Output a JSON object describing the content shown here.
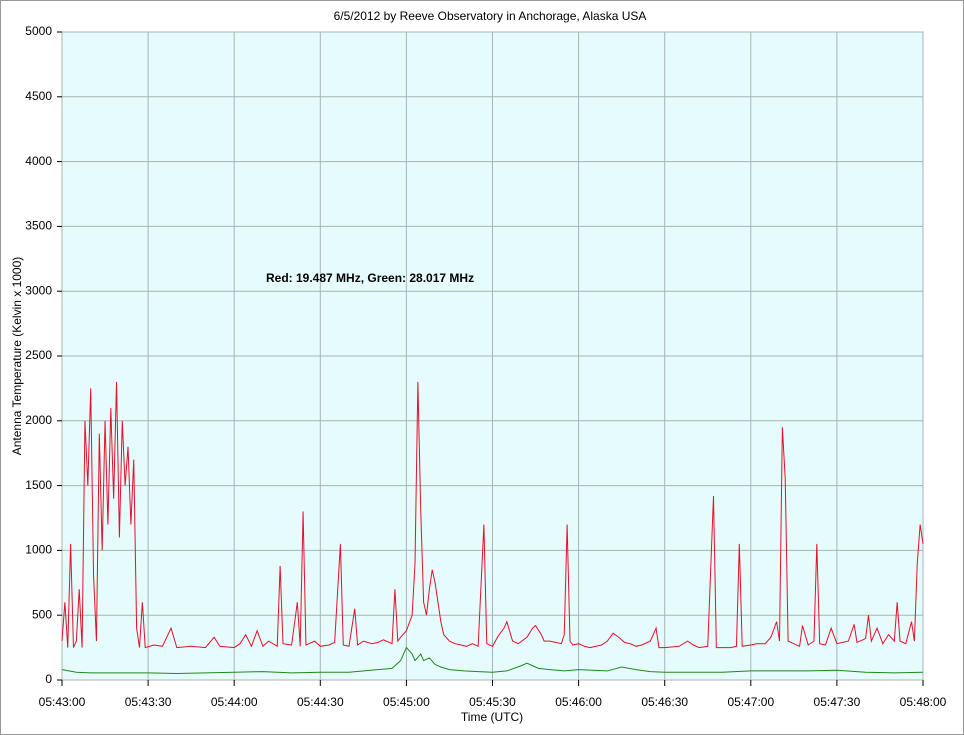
{
  "chart_data": {
    "type": "line",
    "title": "6/5/2012  by  Reeve Observatory  in  Anchorage, Alaska  USA",
    "annotation": "Red: 19.487 MHz, Green: 28.017 MHz",
    "xlabel": "Time (UTC)",
    "ylabel": "Antenna Temperature (Kelvin x 1000)",
    "xlim": [
      "05:43:00",
      "05:48:00"
    ],
    "xticks": [
      "05:43:00",
      "05:43:30",
      "05:44:00",
      "05:44:30",
      "05:45:00",
      "05:45:30",
      "05:46:00",
      "05:46:30",
      "05:47:00",
      "05:47:30",
      "05:48:00"
    ],
    "ylim": [
      0,
      5000
    ],
    "yticks": [
      0,
      500,
      1000,
      1500,
      2000,
      2500,
      3000,
      3500,
      4000,
      4500,
      5000
    ],
    "grid": true,
    "series": [
      {
        "name": "Red",
        "color": "#e5102b",
        "x": [
          "05:43:00",
          "05:43:01",
          "05:43:02",
          "05:43:03",
          "05:43:04",
          "05:43:05",
          "05:43:06",
          "05:43:07",
          "05:43:08",
          "05:43:09",
          "05:43:10",
          "05:43:11",
          "05:43:12",
          "05:43:13",
          "05:43:14",
          "05:43:15",
          "05:43:16",
          "05:43:17",
          "05:43:18",
          "05:43:19",
          "05:43:20",
          "05:43:21",
          "05:43:22",
          "05:43:23",
          "05:43:24",
          "05:43:25",
          "05:43:26",
          "05:43:27",
          "05:43:28",
          "05:43:29",
          "05:43:32",
          "05:43:35",
          "05:43:38",
          "05:43:40",
          "05:43:45",
          "05:43:50",
          "05:43:53",
          "05:43:55",
          "05:44:00",
          "05:44:02",
          "05:44:04",
          "05:44:06",
          "05:44:08",
          "05:44:10",
          "05:44:12",
          "05:44:15",
          "05:44:16",
          "05:44:17",
          "05:44:20",
          "05:44:22",
          "05:44:23",
          "05:44:24",
          "05:44:25",
          "05:44:28",
          "05:44:30",
          "05:44:33",
          "05:44:35",
          "05:44:37",
          "05:44:38",
          "05:44:40",
          "05:44:42",
          "05:44:43",
          "05:44:45",
          "05:44:48",
          "05:44:50",
          "05:44:52",
          "05:44:55",
          "05:44:56",
          "05:44:57",
          "05:44:58",
          "05:45:00",
          "05:45:02",
          "05:45:03",
          "05:45:04",
          "05:45:05",
          "05:45:06",
          "05:45:07",
          "05:45:08",
          "05:45:09",
          "05:45:10",
          "05:45:11",
          "05:45:12",
          "05:45:13",
          "05:45:15",
          "05:45:17",
          "05:45:19",
          "05:45:21",
          "05:45:23",
          "05:45:25",
          "05:45:27",
          "05:45:28",
          "05:45:30",
          "05:45:32",
          "05:45:34",
          "05:45:35",
          "05:45:37",
          "05:45:39",
          "05:45:42",
          "05:45:44",
          "05:45:45",
          "05:45:47",
          "05:45:48",
          "05:45:50",
          "05:45:52",
          "05:45:54",
          "05:45:55",
          "05:45:56",
          "05:45:57",
          "05:45:58",
          "05:46:00",
          "05:46:02",
          "05:46:04",
          "05:46:06",
          "05:46:08",
          "05:46:10",
          "05:46:12",
          "05:46:14",
          "05:46:16",
          "05:46:18",
          "05:46:20",
          "05:46:22",
          "05:46:25",
          "05:46:27",
          "05:46:28",
          "05:46:30",
          "05:46:35",
          "05:46:38",
          "05:46:40",
          "05:46:42",
          "05:46:45",
          "05:46:47",
          "05:46:48",
          "05:46:50",
          "05:46:53",
          "05:46:55",
          "05:46:56",
          "05:46:57",
          "05:47:00",
          "05:47:02",
          "05:47:05",
          "05:47:07",
          "05:47:09",
          "05:47:10",
          "05:47:11",
          "05:47:12",
          "05:47:13",
          "05:47:15",
          "05:47:17",
          "05:47:18",
          "05:47:20",
          "05:47:22",
          "05:47:23",
          "05:47:24",
          "05:47:26",
          "05:47:28",
          "05:47:30",
          "05:47:32",
          "05:47:34",
          "05:47:36",
          "05:47:37",
          "05:47:40",
          "05:47:41",
          "05:47:42",
          "05:47:44",
          "05:47:46",
          "05:47:48",
          "05:47:50",
          "05:47:51",
          "05:47:52",
          "05:47:54",
          "05:47:56",
          "05:47:57",
          "05:47:58",
          "05:47:59",
          "05:48:00"
        ],
        "values": [
          300,
          600,
          250,
          1050,
          250,
          300,
          700,
          250,
          2000,
          1500,
          2250,
          800,
          300,
          1900,
          1000,
          2000,
          1200,
          2100,
          1400,
          2300,
          1100,
          2000,
          1500,
          1800,
          1200,
          1700,
          400,
          250,
          600,
          250,
          270,
          260,
          400,
          250,
          260,
          250,
          330,
          260,
          250,
          280,
          350,
          260,
          380,
          260,
          300,
          260,
          880,
          280,
          270,
          600,
          260,
          1300,
          270,
          300,
          260,
          270,
          290,
          1050,
          270,
          260,
          550,
          270,
          300,
          280,
          290,
          310,
          280,
          700,
          300,
          330,
          380,
          500,
          900,
          2300,
          1300,
          600,
          500,
          700,
          850,
          750,
          600,
          450,
          350,
          300,
          280,
          270,
          260,
          280,
          260,
          1200,
          280,
          260,
          340,
          400,
          450,
          300,
          280,
          330,
          400,
          420,
          350,
          300,
          300,
          290,
          280,
          350,
          1200,
          300,
          270,
          280,
          260,
          250,
          260,
          270,
          300,
          360,
          330,
          290,
          280,
          260,
          270,
          300,
          400,
          250,
          250,
          260,
          300,
          270,
          250,
          260,
          1420,
          250,
          250,
          250,
          260,
          1050,
          260,
          270,
          280,
          280,
          330,
          450,
          300,
          1950,
          1550,
          300,
          280,
          260,
          420,
          270,
          300,
          1050,
          280,
          270,
          400,
          280,
          290,
          300,
          430,
          290,
          320,
          500,
          300,
          400,
          280,
          350,
          300,
          600,
          300,
          280,
          450,
          300,
          900,
          1200,
          1050
        ]
      },
      {
        "name": "Green",
        "color": "#1d8a1d",
        "x": [
          "05:43:00",
          "05:43:05",
          "05:43:10",
          "05:43:20",
          "05:43:30",
          "05:43:40",
          "05:43:50",
          "05:44:00",
          "05:44:10",
          "05:44:20",
          "05:44:30",
          "05:44:40",
          "05:44:50",
          "05:44:55",
          "05:44:58",
          "05:45:00",
          "05:45:02",
          "05:45:03",
          "05:45:05",
          "05:45:06",
          "05:45:08",
          "05:45:10",
          "05:45:12",
          "05:45:15",
          "05:45:20",
          "05:45:25",
          "05:45:30",
          "05:45:35",
          "05:45:40",
          "05:45:42",
          "05:45:44",
          "05:45:46",
          "05:45:50",
          "05:45:55",
          "05:46:00",
          "05:46:05",
          "05:46:10",
          "05:46:15",
          "05:46:20",
          "05:46:25",
          "05:46:30",
          "05:46:40",
          "05:46:50",
          "05:47:00",
          "05:47:10",
          "05:47:20",
          "05:47:30",
          "05:47:40",
          "05:47:50",
          "05:48:00"
        ],
        "values": [
          80,
          60,
          55,
          55,
          55,
          50,
          55,
          60,
          65,
          55,
          60,
          60,
          80,
          90,
          150,
          250,
          200,
          150,
          200,
          150,
          170,
          120,
          100,
          80,
          70,
          65,
          60,
          70,
          110,
          130,
          110,
          90,
          80,
          70,
          80,
          75,
          70,
          100,
          80,
          65,
          60,
          60,
          60,
          70,
          70,
          70,
          75,
          60,
          55,
          60
        ]
      }
    ]
  }
}
